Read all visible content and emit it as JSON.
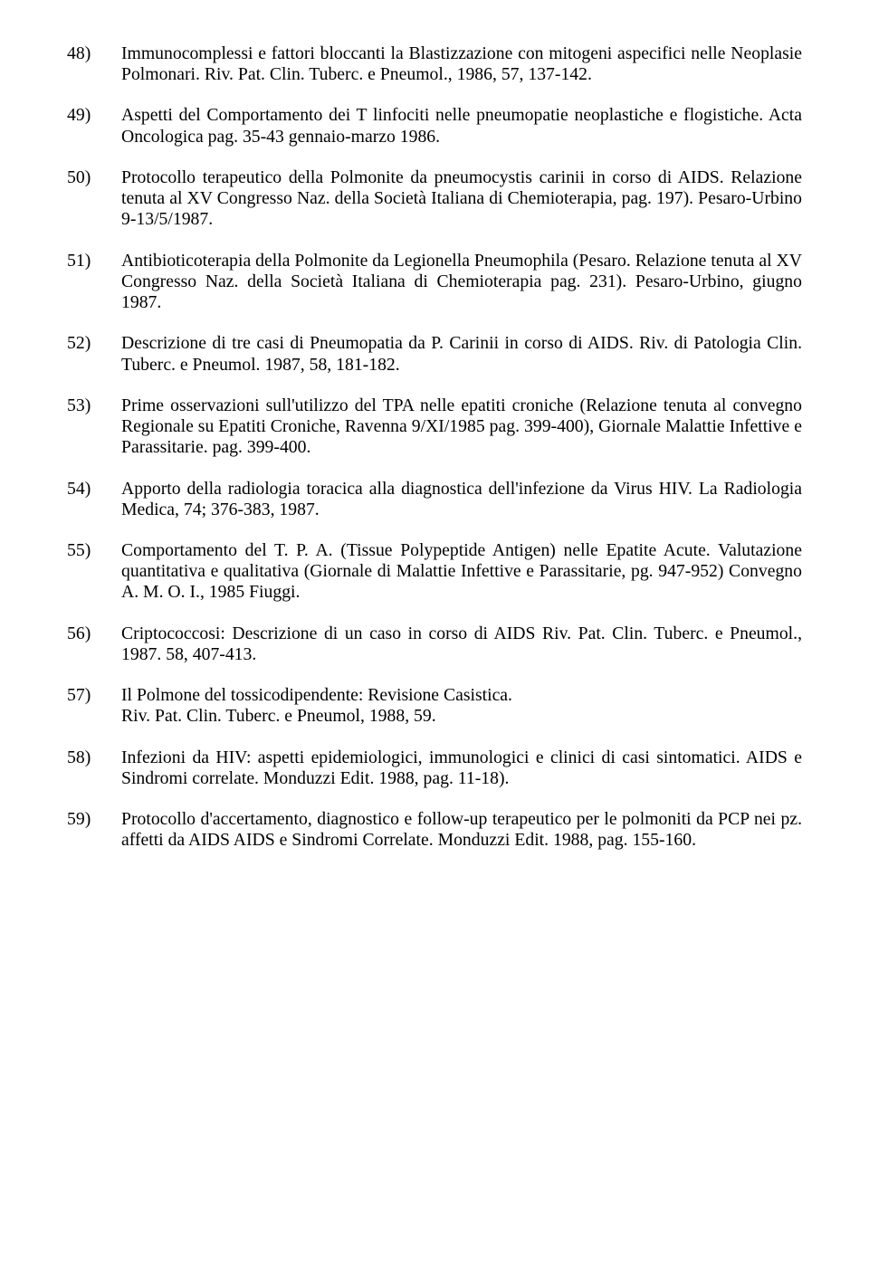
{
  "entries": [
    {
      "num": "48)",
      "text": "Immunocomplessi e fattori bloccanti la Blastizzazione con mitogeni aspecifici nelle Neoplasie Polmonari. Riv. Pat. Clin. Tuberc. e Pneumol., 1986, 57, 137-142."
    },
    {
      "num": "49)",
      "text": "Aspetti del Comportamento dei T linfociti nelle pneumopatie neoplastiche e flogistiche. Acta Oncologica pag. 35-43 gennaio-marzo 1986."
    },
    {
      "num": "50)",
      "text": "Protocollo terapeutico della Polmonite da pneumocystis carinii in corso di AIDS. Relazione tenuta al XV Congresso Naz. della Società Italiana di Chemioterapia, pag. 197). Pesaro-Urbino 9-13/5/1987."
    },
    {
      "num": "51)",
      "text": "Antibioticoterapia della Polmonite da Legionella Pneumophila (Pesaro. Relazione tenuta al XV Congresso Naz. della Società Italiana di Chemioterapia pag. 231). Pesaro-Urbino, giugno 1987."
    },
    {
      "num": "52)",
      "text": "Descrizione di tre casi di Pneumopatia da P. Carinii in corso di AIDS. Riv. di Patologia Clin. Tuberc. e Pneumol. 1987, 58, 181-182."
    },
    {
      "num": "53)",
      "text": "Prime osservazioni sull'utilizzo del TPA nelle epatiti croniche (Relazione tenuta al convegno Regionale su Epatiti Croniche, Ravenna 9/XI/1985 pag. 399-400), Giornale Malattie Infettive e Parassitarie. pag. 399-400."
    },
    {
      "num": "54)",
      "text": "Apporto della radiologia toracica alla diagnostica dell'infezione da Virus HIV. La Radiologia Medica, 74; 376-383, 1987."
    },
    {
      "num": "55)",
      "text": "Comportamento del T. P. A. (Tissue Polypeptide Antigen) nelle Epatite Acute. Valutazione quantitativa e qualitativa (Giornale di Malattie Infettive e Parassitarie, pg. 947-952) Convegno A. M. O. I., 1985 Fiuggi."
    },
    {
      "num": "56)",
      "text": "Criptococcosi: Descrizione di un caso in corso di AIDS Riv. Pat. Clin. Tuberc. e Pneumol., 1987. 58, 407-413."
    },
    {
      "num": "57)",
      "text": "Il Polmone del tossicodipendente: Revisione Casistica.\nRiv. Pat. Clin. Tuberc. e Pneumol, 1988, 59."
    },
    {
      "num": "58)",
      "text": "Infezioni da HIV: aspetti epidemiologici, immunologici e clinici di casi sintomatici. AIDS e Sindromi correlate. Monduzzi Edit. 1988, pag. 11-18)."
    },
    {
      "num": "59)",
      "text": "Protocollo d'accertamento, diagnostico e follow-up terapeutico per le polmoniti da PCP nei pz. affetti da AIDS AIDS e Sindromi Correlate. Monduzzi Edit. 1988, pag. 155-160."
    }
  ]
}
